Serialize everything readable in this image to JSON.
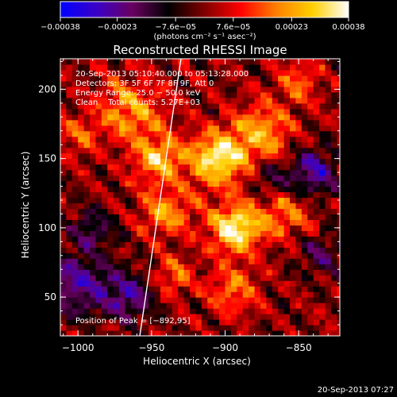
{
  "chart_data": {
    "type": "heatmap",
    "title": "Reconstructed RHESSI Image",
    "xlabel": "Heliocentric X (arcsec)",
    "ylabel": "Heliocentric Y (arcsec)",
    "xlim": [
      -1012,
      -822
    ],
    "ylim": [
      22,
      222
    ],
    "x_ticks": [
      -1000,
      -950,
      -900,
      -850
    ],
    "x_tick_labels": [
      "−1000",
      "−950",
      "−900",
      "−850"
    ],
    "y_ticks": [
      50,
      100,
      150,
      200
    ],
    "y_tick_labels": [
      "50",
      "100",
      "150",
      "200"
    ],
    "colorbar": {
      "range": [
        -0.00038,
        0.00038
      ],
      "ticks": [
        -0.00038,
        -0.00023,
        -7.6e-05,
        7.6e-05,
        0.00023,
        0.00038
      ],
      "tick_labels": [
        "−0.00038",
        "−0.00023",
        "−7.6e−05",
        "7.6e−05",
        "0.00023",
        "0.00038"
      ],
      "unit_label": "(photons cm⁻² s⁻¹ asec⁻²)",
      "colors": [
        "#0000ff",
        "#3a00c8",
        "#6a0060",
        "#000000",
        "#800000",
        "#ff0000",
        "#ff8000",
        "#ffd000",
        "#ffffff"
      ]
    },
    "annotations": {
      "time_range": "20-Sep-2013 05:10:40.000 to 05:13:28.000",
      "detectors": "Detectors: 3F 5F 6F 7F 8F 9F, Att 0",
      "energy_range": "Energy Range: 25.0 − 50.0 keV",
      "clean_counts": "Clean    Total counts: 5.27E+03",
      "peak": "Position of Peak = [−892,95]"
    },
    "peak_position": [
      -892,
      95
    ],
    "limb_line": [
      [
        -958,
        22
      ],
      [
        -930,
        222
      ]
    ],
    "bright_regions": [
      {
        "x": -893,
        "y": 100,
        "intensity": 0.00038,
        "sigma": 12
      },
      {
        "x": -905,
        "y": 150,
        "intensity": 0.00034,
        "sigma": 14
      },
      {
        "x": -945,
        "y": 150,
        "intensity": 0.00026,
        "sigma": 12
      },
      {
        "x": -965,
        "y": 185,
        "intensity": 0.00022,
        "sigma": 16
      },
      {
        "x": -875,
        "y": 170,
        "intensity": 0.00024,
        "sigma": 14
      },
      {
        "x": -940,
        "y": 112,
        "intensity": 0.00022,
        "sigma": 12
      },
      {
        "x": -860,
        "y": 110,
        "intensity": 0.00018,
        "sigma": 12
      },
      {
        "x": -895,
        "y": 55,
        "intensity": 0.00018,
        "sigma": 12
      },
      {
        "x": -935,
        "y": 65,
        "intensity": 0.00016,
        "sigma": 10
      },
      {
        "x": -1000,
        "y": 165,
        "intensity": 0.00014,
        "sigma": 10
      },
      {
        "x": -850,
        "y": 205,
        "intensity": 0.00016,
        "sigma": 10
      }
    ],
    "dark_regions": [
      {
        "x": -1000,
        "y": 60,
        "intensity": -0.00024,
        "sigma": 16
      },
      {
        "x": -965,
        "y": 50,
        "intensity": -0.00022,
        "sigma": 12
      },
      {
        "x": -840,
        "y": 140,
        "intensity": -0.00024,
        "sigma": 12
      },
      {
        "x": -990,
        "y": 100,
        "intensity": -0.00016,
        "sigma": 10
      },
      {
        "x": -835,
        "y": 80,
        "intensity": -0.00016,
        "sigma": 10
      },
      {
        "x": -870,
        "y": 135,
        "intensity": -0.00014,
        "sigma": 8
      }
    ]
  },
  "footer": {
    "timestamp": "20-Sep-2013 07:27"
  }
}
